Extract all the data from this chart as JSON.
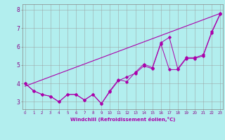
{
  "xlabel": "Windchill (Refroidissement éolien,°C)",
  "x": [
    0,
    1,
    2,
    3,
    4,
    5,
    6,
    7,
    8,
    9,
    10,
    11,
    12,
    13,
    14,
    15,
    16,
    17,
    18,
    19,
    20,
    21,
    22,
    23
  ],
  "line1": [
    4.0,
    3.6,
    3.4,
    3.3,
    3.0,
    3.4,
    3.4,
    3.1,
    3.4,
    2.9,
    3.6,
    4.2,
    4.1,
    4.6,
    5.05,
    4.85,
    6.2,
    6.5,
    4.8,
    5.4,
    5.4,
    5.55,
    6.8,
    7.8
  ],
  "line2": [
    4.0,
    3.6,
    3.4,
    3.3,
    3.0,
    3.4,
    3.4,
    3.1,
    3.4,
    2.9,
    3.55,
    4.15,
    4.35,
    4.55,
    4.95,
    4.8,
    6.15,
    4.75,
    4.75,
    5.35,
    5.35,
    5.5,
    6.75,
    7.75
  ],
  "trend_x": [
    0,
    23
  ],
  "trend_y": [
    3.85,
    7.8
  ],
  "line_color": "#aa00aa",
  "bg_color": "#b2eeee",
  "grid_color": "#999999",
  "ylim": [
    2.6,
    8.3
  ],
  "xlim": [
    -0.3,
    23.3
  ],
  "yticks": [
    3,
    4,
    5,
    6,
    7,
    8
  ],
  "xticks": [
    0,
    1,
    2,
    3,
    4,
    5,
    6,
    7,
    8,
    9,
    10,
    11,
    12,
    13,
    14,
    15,
    16,
    17,
    18,
    19,
    20,
    21,
    22,
    23
  ]
}
